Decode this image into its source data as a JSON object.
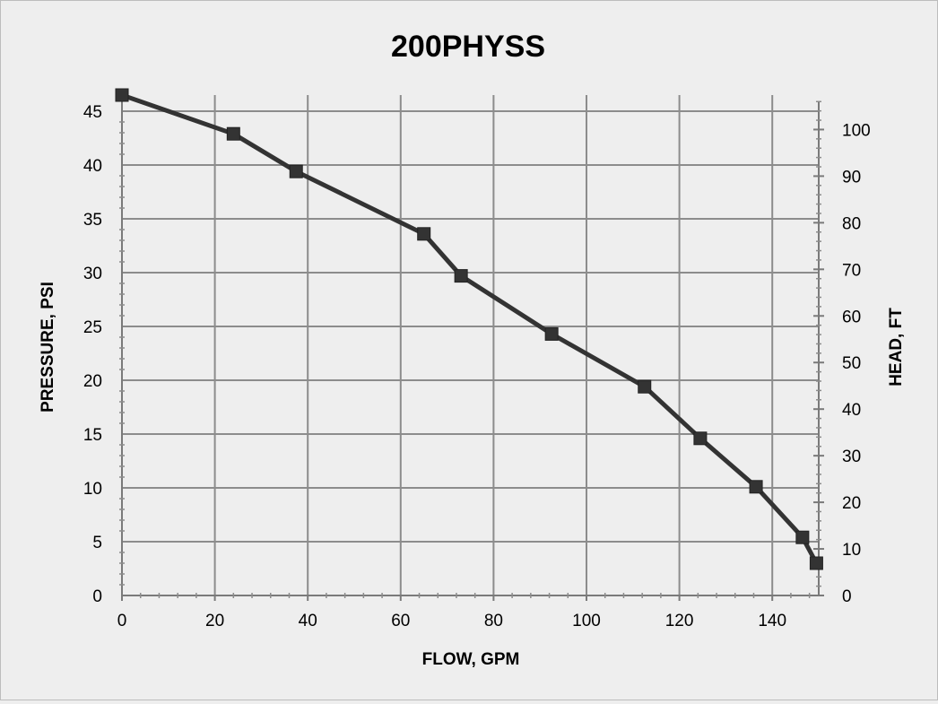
{
  "chart_data": {
    "type": "line",
    "title": "200PHYSS",
    "xlabel": "FLOW, GPM",
    "ylabel": "PRESSURE, PSI",
    "y2label": "HEAD, FT",
    "xlim": [
      0,
      150
    ],
    "ylim": [
      0,
      46.5
    ],
    "y2lim": [
      0,
      107.4
    ],
    "xticks": [
      0,
      20,
      40,
      60,
      80,
      100,
      120,
      140
    ],
    "yticks": [
      0,
      5,
      10,
      15,
      20,
      25,
      30,
      35,
      40,
      45
    ],
    "y2ticks": [
      0,
      10,
      20,
      30,
      40,
      50,
      60,
      70,
      80,
      90,
      100
    ],
    "grid": true,
    "legend": "none",
    "series": [
      {
        "color": "#333333",
        "marker": "square",
        "x": [
          0,
          24,
          37.5,
          65,
          73,
          92.5,
          112.5,
          124.5,
          136.5,
          146.5,
          149.5
        ],
        "y": [
          46.5,
          42.9,
          39.4,
          33.6,
          29.7,
          24.3,
          19.4,
          14.6,
          10.1,
          5.4,
          3.0
        ]
      }
    ]
  }
}
